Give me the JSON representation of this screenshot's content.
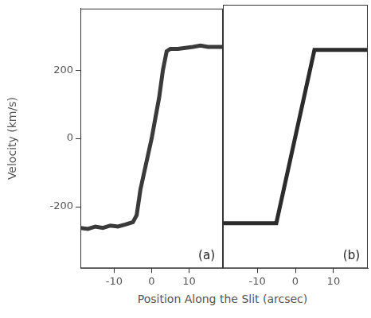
{
  "chart_data": [
    {
      "type": "line",
      "annotation": "(a)",
      "ylabel": "Velocity (km/s)",
      "xlabel": "Position Along the Slit (arcsec)",
      "x": [
        -19,
        -17,
        -15,
        -13,
        -11,
        -9,
        -7,
        -5,
        -4,
        -3,
        -2,
        -1,
        0,
        1,
        2,
        3,
        4,
        5,
        7,
        9,
        11,
        13,
        15,
        17,
        19
      ],
      "series": [
        {
          "name": "(a)",
          "color": "#3a3a3a",
          "values": [
            -262,
            -265,
            -258,
            -262,
            -255,
            -258,
            -252,
            -245,
            -225,
            -150,
            -100,
            -50,
            0,
            60,
            120,
            200,
            255,
            262,
            262,
            265,
            268,
            272,
            268,
            268,
            268
          ]
        }
      ],
      "xlim": [
        -19,
        19
      ],
      "ylim": [
        -380,
        380
      ],
      "xticks": [
        -10,
        0,
        10
      ],
      "yticks": [
        -200,
        0,
        200
      ],
      "grid": false
    },
    {
      "type": "line",
      "annotation": "(b)",
      "x": [
        -19,
        -5,
        5,
        19
      ],
      "series": [
        {
          "name": "(b)",
          "color": "#2b2b2b",
          "values": [
            -250,
            -250,
            250,
            250
          ]
        }
      ],
      "xlim": [
        -19,
        19
      ],
      "ylim": [
        -380,
        380
      ],
      "xticks": [
        -10,
        0,
        10
      ],
      "yticks": [
        -200,
        0,
        200
      ],
      "grid": false,
      "tick_labels": "x"
    }
  ]
}
